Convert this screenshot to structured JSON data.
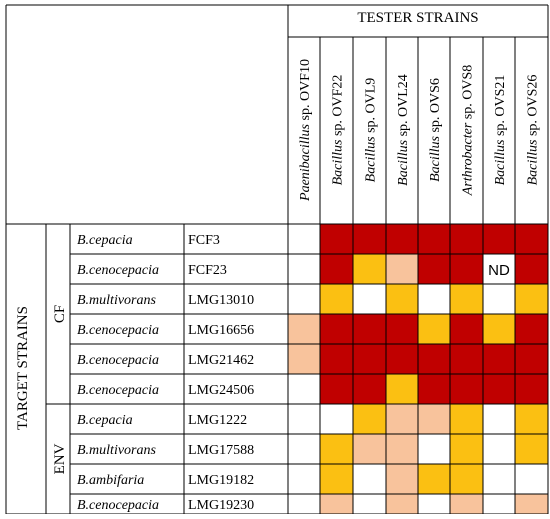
{
  "header": {
    "group_title": "TESTER STRAINS",
    "row_axis_title": "TARGET STRAINS"
  },
  "tester_strains": [
    {
      "genus": "Paenibacillus",
      "rest": " sp. OVF10"
    },
    {
      "genus": "Bacillus",
      "rest": " sp. OVF22"
    },
    {
      "genus": "Bacillus",
      "rest": " sp. OVL9"
    },
    {
      "genus": "Bacillus",
      "rest": " sp. OVL24"
    },
    {
      "genus": "Bacillus",
      "rest": " sp. OVS6"
    },
    {
      "genus": "Arthrobacter",
      "rest": " sp. OVS8"
    },
    {
      "genus": "Bacillus",
      "rest": " sp. OVS21"
    },
    {
      "genus": "Bacillus",
      "rest": " sp. OVS26"
    }
  ],
  "groups": [
    {
      "label": "CF",
      "rows": [
        0,
        5
      ]
    },
    {
      "label": "ENV",
      "rows": [
        6,
        9
      ]
    }
  ],
  "level_colors": {
    "0": "#ffffff",
    "1": "#f8c39c",
    "2": "#fbc012",
    "3": "#c00000"
  },
  "target_strains": [
    {
      "species": "B.cepacia",
      "strain": "FCF3",
      "cells": [
        0,
        3,
        3,
        3,
        3,
        3,
        3,
        3
      ]
    },
    {
      "species": "B.cenocepacia",
      "strain": "FCF23",
      "cells": [
        0,
        3,
        2,
        1,
        3,
        3,
        "ND",
        3
      ]
    },
    {
      "species": "B.multivorans",
      "strain": "LMG13010",
      "cells": [
        0,
        2,
        0,
        2,
        0,
        2,
        0,
        2
      ]
    },
    {
      "species": "B.cenocepacia",
      "strain": "LMG16656",
      "cells": [
        1,
        3,
        3,
        3,
        2,
        3,
        2,
        3
      ]
    },
    {
      "species": "B.cenocepacia",
      "strain": "LMG21462",
      "cells": [
        1,
        3,
        3,
        3,
        3,
        3,
        3,
        3
      ]
    },
    {
      "species": "B.cenocepacia",
      "strain": "LMG24506",
      "cells": [
        0,
        3,
        3,
        2,
        3,
        3,
        3,
        3
      ]
    },
    {
      "species": "B.cepacia",
      "strain": "LMG1222",
      "cells": [
        0,
        0,
        2,
        1,
        1,
        2,
        0,
        2
      ]
    },
    {
      "species": "B.multivorans",
      "strain": "LMG17588",
      "cells": [
        0,
        2,
        1,
        1,
        0,
        2,
        0,
        2
      ]
    },
    {
      "species": "B.ambifaria",
      "strain": "LMG19182",
      "cells": [
        0,
        2,
        0,
        1,
        2,
        2,
        0,
        0
      ]
    },
    {
      "species": "B.cenocepacia",
      "strain": "LMG19230",
      "cells": [
        0,
        1,
        0,
        1,
        0,
        1,
        0,
        1
      ]
    }
  ]
}
